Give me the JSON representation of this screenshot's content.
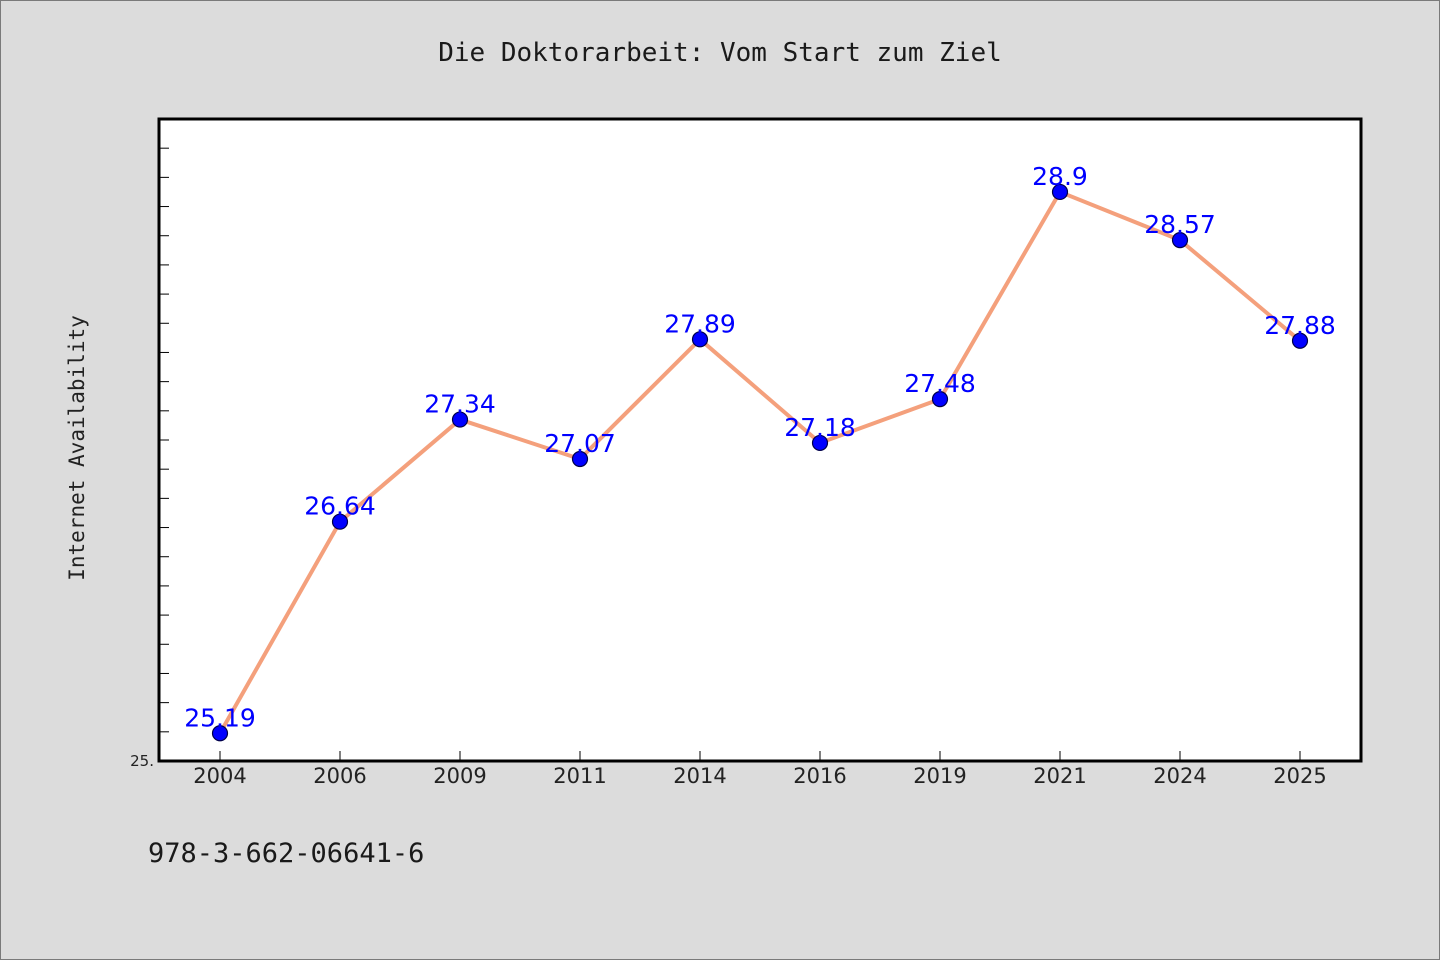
{
  "footer": {
    "isbn": "978-3-662-06641-6"
  },
  "style": {
    "background": "#dcdcdc",
    "plot_background": "#ffffff",
    "line_color": "#f4a07c",
    "marker_color": "#0000ff",
    "label_color": "#0000ff"
  },
  "chart_data": {
    "type": "line",
    "title": "Die Doktorarbeit: Vom Start zum Ziel",
    "xlabel": "",
    "ylabel": "Internet Availability",
    "categories": [
      "2004",
      "2006",
      "2009",
      "2011",
      "2014",
      "2016",
      "2019",
      "2021",
      "2024",
      "2025"
    ],
    "series": [
      {
        "values": [
          25.19,
          26.64,
          27.34,
          27.07,
          27.89,
          27.18,
          27.48,
          28.9,
          28.57,
          27.88
        ]
      }
    ],
    "data_labels": [
      "25.19",
      "26.64",
      "27.34",
      "27.07",
      "27.89",
      "27.18",
      "27.48",
      "28.9",
      "28.57",
      "27.88"
    ],
    "y_tick_labels": [
      "25."
    ],
    "ylim": [
      25.0,
      29.4
    ],
    "grid": false,
    "legend": "none"
  }
}
